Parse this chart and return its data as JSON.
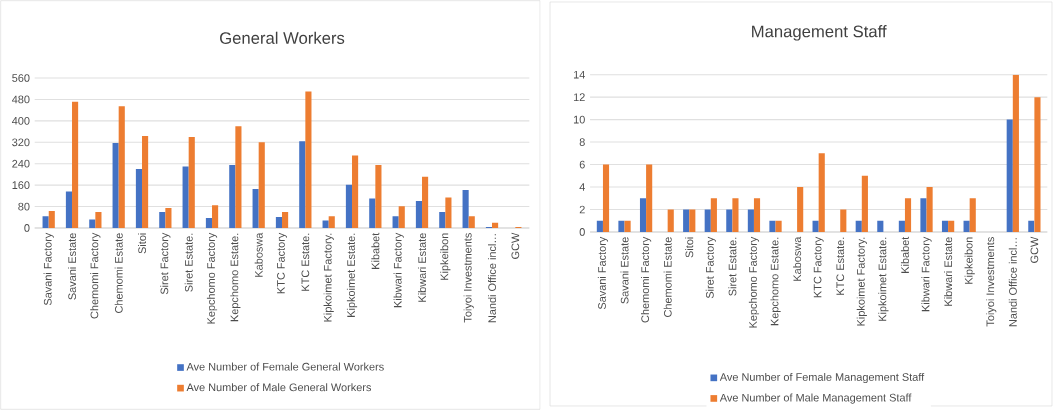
{
  "chart_data": [
    {
      "type": "bar",
      "title": "General Workers",
      "categories": [
        "Savani Factory",
        "Savani Estate",
        "Chemomi Factory",
        "Chemomi Estate",
        "Sitoi",
        "Siret Factory",
        "Siret Estate.",
        "Kepchomo Factory",
        "Kepchomo Estate.",
        "Kaboswa",
        "KTC Factory",
        "KTC Estate.",
        "Kipkoimet Factory.",
        "Kipkoimet Estate.",
        "Kibabet",
        "Kibwari Factory",
        "Kibwari Estate",
        "Kipkeibon",
        "Toiyoi Investments",
        "Nandi Office incl…",
        "GCW"
      ],
      "series": [
        {
          "name": "Ave Number of Female General Workers",
          "color": "#4472c4",
          "values": [
            44,
            136,
            32,
            317,
            220,
            60,
            230,
            37,
            235,
            146,
            41,
            324,
            28,
            161,
            110,
            44,
            101,
            60,
            142,
            4,
            0
          ]
        },
        {
          "name": "Ave Number of Male General Workers",
          "color": "#ed7d31",
          "values": [
            63,
            471,
            60,
            455,
            343,
            75,
            340,
            85,
            380,
            320,
            60,
            510,
            44,
            271,
            235,
            81,
            191,
            114,
            44,
            20,
            4
          ]
        }
      ],
      "ylim": [
        0,
        560
      ],
      "yticks": [
        0,
        80,
        160,
        240,
        320,
        400,
        480,
        560
      ],
      "grid": "y",
      "legend": "bottom"
    },
    {
      "type": "bar",
      "title": "Management Staff",
      "categories": [
        "Savani Factory",
        "Savani Estate",
        "Chemomi Factory",
        "Chemomi Estate",
        "Sitoi",
        "Siret Factory",
        "Siret Estate.",
        "Kepchomo Factory",
        "Kepchomo Estate.",
        "Kaboswa",
        "KTC Factory",
        "KTC Estate.",
        "Kipkoimet Factory.",
        "Kipkoimet Estate.",
        "Kibabet",
        "Kibwari Factory",
        "Kibwari Estate",
        "Kipkeibon",
        "Toiyoi Investments",
        "Nandi Office incl…",
        "GCW"
      ],
      "series": [
        {
          "name": "Ave Number of Female Management Staff",
          "color": "#4472c4",
          "values": [
            1,
            1,
            3,
            0,
            2,
            2,
            2,
            2,
            1,
            0,
            1,
            0,
            1,
            1,
            1,
            3,
            1,
            1,
            0,
            10,
            1
          ]
        },
        {
          "name": "Ave Number of Male Management Staff",
          "color": "#ed7d31",
          "values": [
            6,
            1,
            6,
            2,
            2,
            3,
            3,
            3,
            1,
            4,
            7,
            2,
            5,
            0,
            3,
            4,
            1,
            3,
            0,
            14,
            12
          ]
        }
      ],
      "ylim": [
        0,
        14
      ],
      "yticks": [
        0,
        2,
        4,
        6,
        8,
        10,
        12,
        14
      ],
      "grid": "y",
      "legend": "bottom"
    }
  ]
}
